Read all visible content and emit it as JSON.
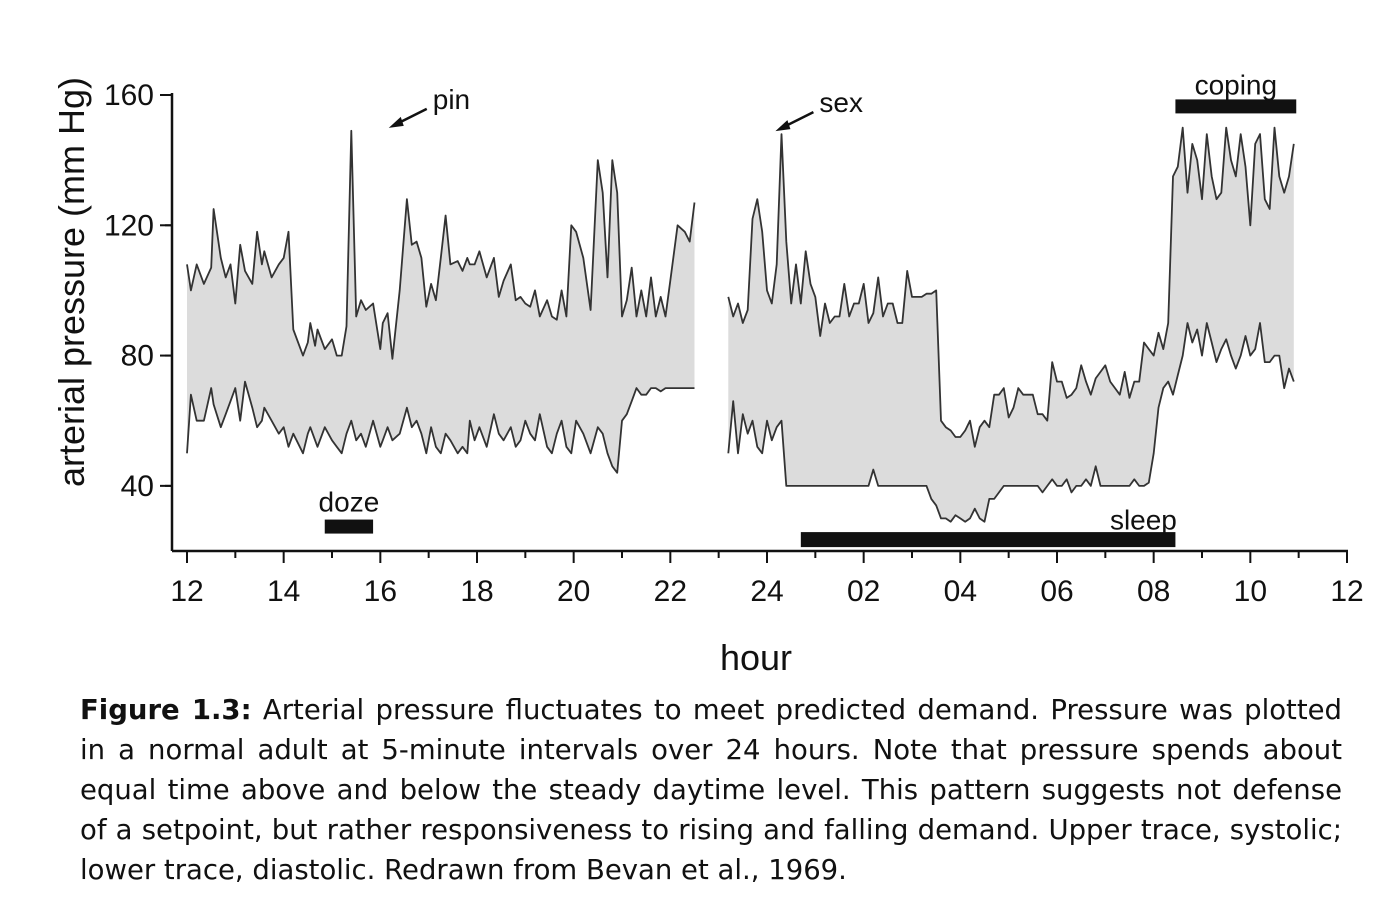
{
  "chart_data": {
    "type": "area",
    "xlabel": "hour",
    "ylabel": "arterial pressure (mm Hg)",
    "x_ticks": [
      "12",
      "14",
      "16",
      "18",
      "20",
      "22",
      "24",
      "02",
      "04",
      "06",
      "08",
      "10",
      "12"
    ],
    "y_ticks": [
      "40",
      "80",
      "120",
      "160"
    ],
    "x_range_hours_from_noon": [
      0,
      24
    ],
    "ylim": [
      20,
      160
    ],
    "series": [
      {
        "name": "systolic",
        "segments": [
          {
            "x": [
              0.0,
              0.08,
              0.2,
              0.35,
              0.5,
              0.55,
              0.7,
              0.8,
              0.9,
              1.0,
              1.1,
              1.2,
              1.35,
              1.45,
              1.55,
              1.6,
              1.75,
              1.9,
              2.0,
              2.1,
              2.2,
              2.4,
              2.5,
              2.55,
              2.65,
              2.7,
              2.85,
              3.0,
              3.1,
              3.2,
              3.3,
              3.4,
              3.5,
              3.6,
              3.7,
              3.85,
              4.0,
              4.05,
              4.15,
              4.25,
              4.4,
              4.55,
              4.65,
              4.75,
              4.85,
              4.95,
              5.05,
              5.15,
              5.25,
              5.35,
              5.45,
              5.6,
              5.7,
              5.8,
              5.85,
              5.95,
              6.05,
              6.2,
              6.35,
              6.45,
              6.55,
              6.7,
              6.8,
              6.9,
              7.0,
              7.1,
              7.2,
              7.3,
              7.45,
              7.55,
              7.65,
              7.75,
              7.85,
              7.95,
              8.05,
              8.2,
              8.35,
              8.5,
              8.6,
              8.7,
              8.8,
              8.9,
              9.0,
              9.1,
              9.2,
              9.3,
              9.4,
              9.5,
              9.6,
              9.7,
              9.8,
              9.9,
              10.0,
              10.15,
              10.3,
              10.4,
              10.5
            ],
            "y": [
              108,
              100,
              108,
              102,
              107,
              125,
              110,
              104,
              108,
              96,
              114,
              106,
              102,
              118,
              108,
              112,
              104,
              108,
              110,
              118,
              88,
              80,
              84,
              90,
              83,
              88,
              82,
              85,
              80,
              80,
              89,
              149,
              92,
              97,
              94,
              96,
              82,
              90,
              93,
              79,
              100,
              128,
              114,
              115,
              110,
              95,
              102,
              97,
              110,
              123,
              108,
              109,
              106,
              110,
              108,
              108,
              112,
              104,
              110,
              98,
              103,
              108,
              97,
              98,
              96,
              95,
              100,
              92,
              97,
              92,
              91,
              100,
              92,
              120,
              118,
              110,
              94,
              140,
              130,
              104,
              140,
              130,
              92,
              97,
              107,
              92,
              100,
              92,
              104,
              92,
              98,
              92,
              103,
              120,
              118,
              115,
              127
            ]
          },
          {
            "x": [
              11.2,
              11.3,
              11.4,
              11.5,
              11.6,
              11.7,
              11.8,
              11.9,
              12.0,
              12.1,
              12.2,
              12.3,
              12.4,
              12.5,
              12.6,
              12.7,
              12.8,
              12.9,
              13.0,
              13.1,
              13.2,
              13.3,
              13.4,
              13.5,
              13.6,
              13.7,
              13.8,
              13.9,
              14.0,
              14.1,
              14.2,
              14.3,
              14.4,
              14.5,
              14.6,
              14.7,
              14.8,
              14.9,
              15.0,
              15.1,
              15.2,
              15.3,
              15.4,
              15.5,
              15.6,
              15.7,
              15.8,
              15.9,
              16.0,
              16.1,
              16.2,
              16.3,
              16.4,
              16.5,
              16.6,
              16.7,
              16.8,
              16.9,
              17.0,
              17.1,
              17.2,
              17.3,
              17.4,
              17.5,
              17.6,
              17.7,
              17.8,
              17.9,
              18.0,
              18.1,
              18.2,
              18.3,
              18.4,
              18.5,
              18.6,
              18.7,
              18.8,
              18.9,
              19.0,
              19.1,
              19.2,
              19.3,
              19.4,
              19.5,
              19.6,
              19.7,
              19.8,
              19.9,
              20.0,
              20.1,
              20.2,
              20.3,
              20.4,
              20.5,
              20.6,
              20.7,
              20.8,
              20.9,
              21.0,
              21.1,
              21.2,
              21.3,
              21.4,
              21.5,
              21.6,
              21.7,
              21.8,
              21.9,
              22.0,
              22.1,
              22.2,
              22.3,
              22.4,
              22.5,
              22.6,
              22.7,
              22.8,
              22.9
            ],
            "y": [
              98,
              92,
              96,
              90,
              94,
              122,
              128,
              118,
              100,
              96,
              108,
              148,
              115,
              96,
              108,
              96,
              112,
              102,
              98,
              86,
              96,
              90,
              92,
              92,
              102,
              92,
              96,
              96,
              102,
              90,
              93,
              104,
              92,
              96,
              96,
              90,
              90,
              106,
              98,
              98,
              98,
              99,
              99,
              100,
              60,
              58,
              57,
              55,
              55,
              57,
              60,
              52,
              58,
              60,
              58,
              68,
              68,
              70,
              61,
              64,
              70,
              68,
              68,
              68,
              62,
              62,
              60,
              78,
              72,
              72,
              67,
              68,
              70,
              77,
              72,
              68,
              73,
              75,
              77,
              72,
              70,
              68,
              75,
              67,
              72,
              72,
              84,
              82,
              80,
              87,
              82,
              90,
              135,
              138,
              150,
              130,
              145,
              140,
              128,
              148,
              135,
              128,
              130,
              150,
              140,
              135,
              148,
              138,
              120,
              145,
              148,
              128,
              125,
              150,
              135,
              130,
              135,
              145
            ]
          }
        ]
      },
      {
        "name": "diastolic",
        "segments": [
          {
            "x": [
              0.0,
              0.08,
              0.2,
              0.35,
              0.5,
              0.55,
              0.7,
              0.8,
              0.9,
              1.0,
              1.1,
              1.2,
              1.35,
              1.45,
              1.55,
              1.6,
              1.75,
              1.9,
              2.0,
              2.1,
              2.2,
              2.4,
              2.5,
              2.55,
              2.65,
              2.7,
              2.85,
              3.0,
              3.1,
              3.2,
              3.3,
              3.4,
              3.5,
              3.6,
              3.7,
              3.85,
              4.0,
              4.05,
              4.15,
              4.25,
              4.4,
              4.55,
              4.65,
              4.75,
              4.85,
              4.95,
              5.05,
              5.15,
              5.25,
              5.35,
              5.45,
              5.6,
              5.7,
              5.8,
              5.85,
              5.95,
              6.05,
              6.2,
              6.35,
              6.45,
              6.55,
              6.7,
              6.8,
              6.9,
              7.0,
              7.1,
              7.2,
              7.3,
              7.45,
              7.55,
              7.65,
              7.75,
              7.85,
              7.95,
              8.05,
              8.2,
              8.35,
              8.5,
              8.6,
              8.7,
              8.8,
              8.9,
              9.0,
              9.1,
              9.2,
              9.3,
              9.4,
              9.5,
              9.6,
              9.7,
              9.8,
              9.9,
              10.0,
              10.15,
              10.3,
              10.4,
              10.5
            ],
            "y": [
              50,
              68,
              60,
              60,
              70,
              65,
              58,
              62,
              66,
              70,
              60,
              72,
              64,
              58,
              60,
              64,
              60,
              56,
              58,
              52,
              56,
              50,
              56,
              58,
              54,
              52,
              58,
              54,
              52,
              50,
              56,
              60,
              54,
              56,
              52,
              60,
              52,
              54,
              58,
              54,
              56,
              64,
              58,
              60,
              56,
              50,
              58,
              52,
              50,
              56,
              54,
              50,
              52,
              50,
              60,
              54,
              58,
              52,
              62,
              56,
              54,
              58,
              52,
              54,
              60,
              56,
              54,
              62,
              52,
              50,
              56,
              60,
              52,
              50,
              60,
              56,
              50,
              58,
              56,
              50,
              46,
              44,
              60,
              62,
              66,
              70,
              68,
              68,
              70,
              70,
              69,
              70,
              70,
              70,
              70,
              70,
              70
            ]
          },
          {
            "x": [
              11.2,
              11.3,
              11.4,
              11.5,
              11.6,
              11.7,
              11.8,
              11.9,
              12.0,
              12.1,
              12.2,
              12.3,
              12.4,
              12.5,
              12.6,
              12.7,
              12.8,
              12.9,
              13.0,
              13.1,
              13.2,
              13.3,
              13.4,
              13.5,
              13.6,
              13.7,
              13.8,
              13.9,
              14.0,
              14.1,
              14.2,
              14.3,
              14.4,
              14.5,
              14.6,
              14.7,
              14.8,
              14.9,
              15.0,
              15.1,
              15.2,
              15.3,
              15.4,
              15.5,
              15.6,
              15.7,
              15.8,
              15.9,
              16.0,
              16.1,
              16.2,
              16.3,
              16.4,
              16.5,
              16.6,
              16.7,
              16.8,
              16.9,
              17.0,
              17.1,
              17.2,
              17.3,
              17.4,
              17.5,
              17.6,
              17.7,
              17.8,
              17.9,
              18.0,
              18.1,
              18.2,
              18.3,
              18.4,
              18.5,
              18.6,
              18.7,
              18.8,
              18.9,
              19.0,
              19.1,
              19.2,
              19.3,
              19.4,
              19.5,
              19.6,
              19.7,
              19.8,
              19.9,
              20.0,
              20.1,
              20.2,
              20.3,
              20.4,
              20.5,
              20.6,
              20.7,
              20.8,
              20.9,
              21.0,
              21.1,
              21.2,
              21.3,
              21.4,
              21.5,
              21.6,
              21.7,
              21.8,
              21.9,
              22.0,
              22.1,
              22.2,
              22.3,
              22.4,
              22.5,
              22.6,
              22.7,
              22.8,
              22.9
            ],
            "y": [
              50,
              66,
              50,
              62,
              56,
              60,
              52,
              50,
              60,
              54,
              58,
              60,
              40,
              40,
              40,
              40,
              40,
              40,
              40,
              40,
              40,
              40,
              40,
              40,
              40,
              40,
              40,
              40,
              40,
              40,
              45,
              40,
              40,
              40,
              40,
              40,
              40,
              40,
              40,
              40,
              40,
              40,
              36,
              34,
              30,
              30,
              29,
              31,
              30,
              29,
              30,
              33,
              30,
              29,
              36,
              36,
              38,
              40,
              40,
              40,
              40,
              40,
              40,
              40,
              40,
              38,
              40,
              42,
              40,
              40,
              42,
              38,
              40,
              40,
              42,
              40,
              46,
              40,
              40,
              40,
              40,
              40,
              40,
              40,
              42,
              40,
              40,
              41,
              50,
              64,
              70,
              72,
              68,
              74,
              80,
              90,
              84,
              88,
              80,
              90,
              84,
              78,
              82,
              85,
              80,
              76,
              80,
              86,
              80,
              82,
              90,
              78,
              78,
              80,
              80,
              70,
              76,
              72
            ]
          }
        ]
      }
    ],
    "annotations": [
      {
        "text": "pin",
        "x": 4.05,
        "y": 149
      },
      {
        "text": "sex",
        "x": 12.05,
        "y": 148
      },
      {
        "text": "coping"
      },
      {
        "text": "doze"
      },
      {
        "text": "sleep"
      }
    ],
    "bars": [
      {
        "label": "doze",
        "from": 2.85,
        "to": 3.85
      },
      {
        "label": "sleep",
        "from": 12.7,
        "to": 20.45
      },
      {
        "label": "coping",
        "from": 20.45,
        "to": 22.95
      }
    ],
    "grid": false
  },
  "caption": {
    "label": "Figure 1.3:",
    "text": "Arterial pressure fluctuates to meet predicted demand. Pressure was plotted in a normal adult at 5-minute intervals over 24 hours. Note that pressure spends about equal time above and below the steady daytime level. This pattern suggests not defense of a setpoint, but rather responsiveness to rising and falling demand. Upper trace, systolic; lower trace, diastolic. Redrawn from Bevan et al., 1969."
  }
}
